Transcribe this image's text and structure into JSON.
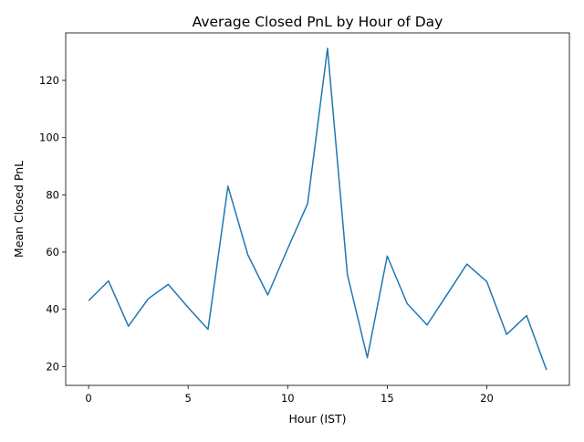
{
  "chart_data": {
    "type": "line",
    "title": "Average Closed PnL by Hour of Day",
    "xlabel": "Hour (IST)",
    "ylabel": "Mean Closed PnL",
    "xlim": [
      -1.15,
      24.15
    ],
    "ylim": [
      13.4,
      136.6
    ],
    "xticks": [
      0,
      5,
      10,
      15,
      20
    ],
    "yticks": [
      20,
      40,
      60,
      80,
      100,
      120
    ],
    "grid": false,
    "line_color": "#1f77b4",
    "series": [
      {
        "x": [
          0,
          1,
          2,
          3,
          4,
          5,
          6,
          7,
          8,
          9,
          10,
          11,
          12,
          13,
          14,
          15,
          16,
          17,
          18,
          19,
          20,
          21,
          22,
          23
        ],
        "values": [
          43.0,
          49.9,
          34.1,
          43.7,
          48.7,
          40.6,
          33.0,
          83.0,
          59.0,
          45.0,
          61.2,
          76.9,
          131.2,
          52.1,
          23.1,
          58.6,
          42.0,
          34.5,
          45.1,
          55.8,
          49.7,
          31.2,
          37.8,
          18.8
        ]
      }
    ]
  }
}
